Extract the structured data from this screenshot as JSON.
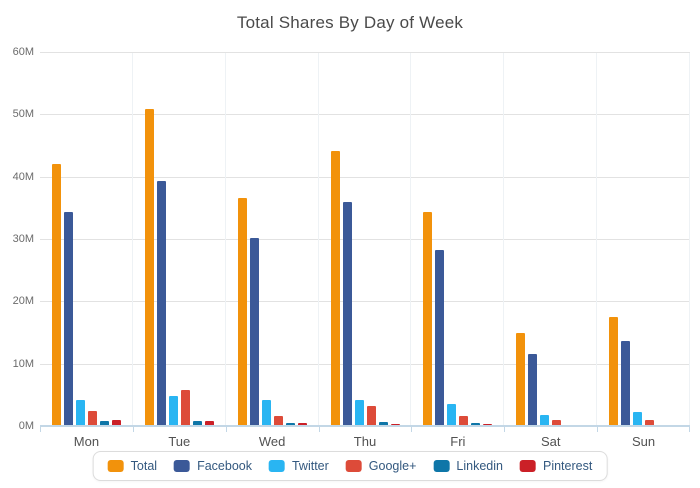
{
  "chart_data": {
    "type": "bar",
    "title": "Total Shares By Day of Week",
    "categories": [
      "Mon",
      "Tue",
      "Wed",
      "Thu",
      "Fri",
      "Sat",
      "Sun"
    ],
    "series": [
      {
        "name": "Total",
        "color": "#F2920B",
        "values": [
          42.2,
          51.0,
          36.8,
          44.3,
          34.5,
          15.1,
          17.6
        ]
      },
      {
        "name": "Facebook",
        "color": "#3B5998",
        "values": [
          34.5,
          39.5,
          30.4,
          36.1,
          28.4,
          11.7,
          13.8
        ]
      },
      {
        "name": "Twitter",
        "color": "#29B5F2",
        "values": [
          4.4,
          4.9,
          4.3,
          4.3,
          3.7,
          1.9,
          2.4
        ]
      },
      {
        "name": "Google+",
        "color": "#DD4B39",
        "values": [
          2.6,
          5.9,
          1.8,
          3.4,
          1.8,
          1.1,
          1.2
        ]
      },
      {
        "name": "Linkedin",
        "color": "#0E76A8",
        "values": [
          1.0,
          1.0,
          0.7,
          0.8,
          0.6,
          0.2,
          0.2
        ]
      },
      {
        "name": "Pinterest",
        "color": "#CB2027",
        "values": [
          1.2,
          0.9,
          0.6,
          0.5,
          0.5,
          0.4,
          0.3
        ]
      }
    ],
    "unit": "M",
    "ylim": [
      0,
      60
    ],
    "y_ticks": [
      "0M",
      "10M",
      "20M",
      "30M",
      "40M",
      "50M",
      "60M"
    ],
    "grid": true,
    "legend_position": "bottom",
    "axis_color": "#c3d7e6",
    "grid_color": "#e2e2e2"
  }
}
